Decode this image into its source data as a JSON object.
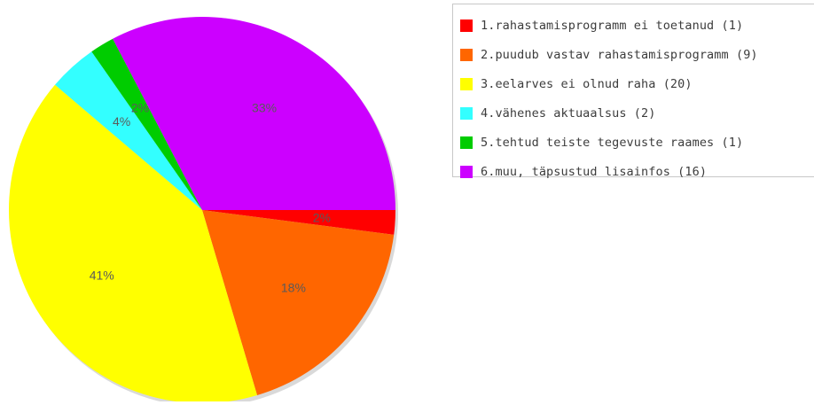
{
  "chart_data": {
    "type": "pie",
    "categories": [
      "1.rahastamisprogramm ei toetanud (1)",
      "2.puudub vastav rahastamisprogramm (9)",
      "3.eelarves ei olnud raha (20)",
      "4.vähenes aktuaalsus (2)",
      "5.tehtud teiste tegevuste raames (1)",
      "6.muu, täpsustud lisainfos (16)"
    ],
    "values": [
      1,
      9,
      20,
      2,
      1,
      16
    ],
    "data_labels": [
      "2%",
      "18%",
      "41%",
      "4%",
      "2%",
      "33%"
    ],
    "colors": [
      "#ff0000",
      "#ff6600",
      "#ffff00",
      "#33ffff",
      "#00cc00",
      "#cc00ff"
    ],
    "legend_position": "top-right"
  },
  "legend": {
    "items": [
      {
        "label": "1.rahastamisprogramm ei toetanud (1)",
        "color": "#ff0000"
      },
      {
        "label": "2.puudub vastav rahastamisprogramm (9)",
        "color": "#ff6600"
      },
      {
        "label": "3.eelarves ei olnud raha (20)",
        "color": "#ffff00"
      },
      {
        "label": "4.vähenes aktuaalsus (2)",
        "color": "#33ffff"
      },
      {
        "label": "5.tehtud teiste tegevuste raames (1)",
        "color": "#00cc00"
      },
      {
        "label": "6.muu, täpsustud lisainfos (16)",
        "color": "#cc00ff"
      }
    ]
  }
}
